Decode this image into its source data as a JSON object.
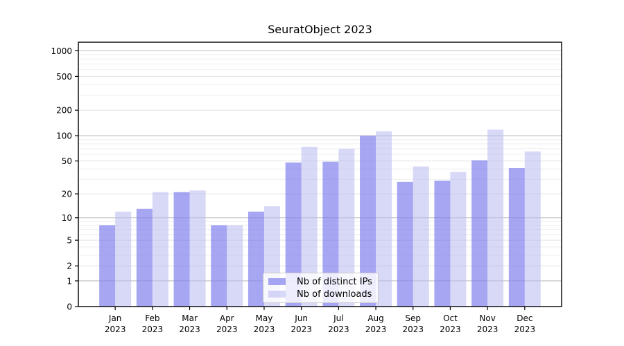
{
  "chart_data": {
    "type": "bar",
    "title": "SeuratObject 2023",
    "categories": [
      "Jan",
      "Feb",
      "Mar",
      "Apr",
      "May",
      "Jun",
      "Jul",
      "Aug",
      "Sep",
      "Oct",
      "Nov",
      "Dec"
    ],
    "category_year": "2023",
    "series": [
      {
        "name": "Nb of distinct IPs",
        "color": "rgba(128,128,238,0.70)",
        "values": [
          8,
          13,
          21,
          8,
          12,
          48,
          49,
          100,
          28,
          29,
          51,
          41
        ]
      },
      {
        "name": "Nb of downloads",
        "color": "rgba(184,184,240,0.55)",
        "values": [
          12,
          21,
          22,
          8,
          14,
          74,
          70,
          113,
          43,
          37,
          118,
          65
        ]
      }
    ],
    "yscale": "log1p",
    "ylabel": "",
    "xlabel": "",
    "y_ticks": [
      0,
      1,
      2,
      5,
      10,
      20,
      50,
      100,
      200,
      500,
      1000
    ],
    "y_major_gridlines": [
      1,
      10,
      100,
      1000
    ],
    "y_minor_gridlines": [
      3,
      4,
      6,
      7,
      8,
      9,
      30,
      40,
      60,
      70,
      80,
      90,
      300,
      400,
      600,
      700,
      800,
      900
    ],
    "ylim": [
      0,
      1250
    ],
    "grid": true,
    "legend_position": "lower-center-inside"
  },
  "colors": {
    "major_grid": "#b8b8b8",
    "labeled_grid": "#e2e2e2",
    "minor_grid": "#eeeeee",
    "spine": "#000000",
    "tick_text": "#000000"
  }
}
